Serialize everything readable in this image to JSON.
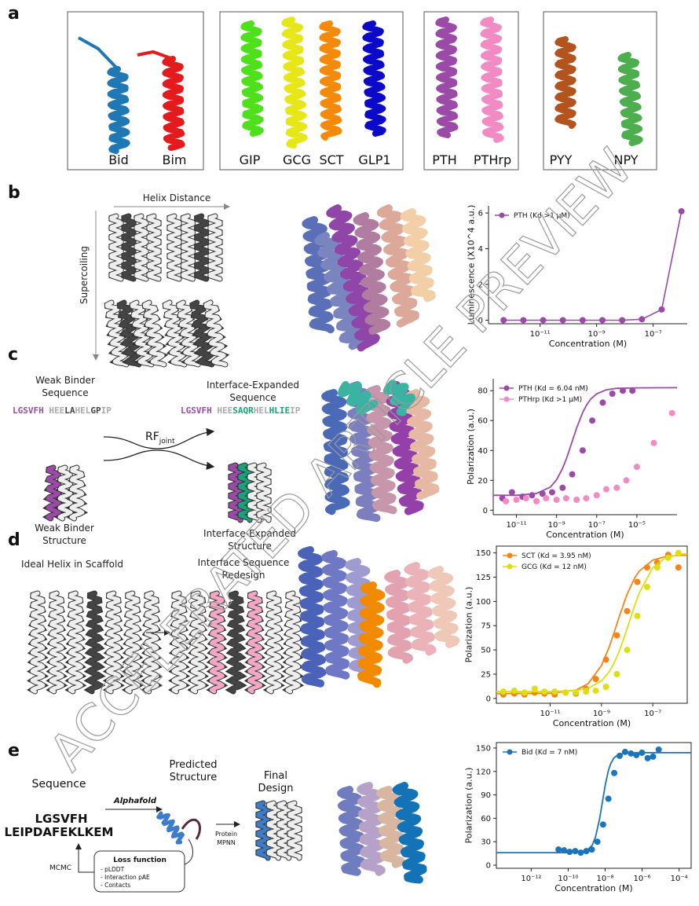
{
  "watermark": "ACCELERATED ARTICLE PREVIEW",
  "panels": {
    "a": {
      "label": "a",
      "peptides": [
        "Bid",
        "Bim",
        "GIP",
        "GCG",
        "SCT",
        "GLP1",
        "PTH",
        "PTHrp",
        "PYY",
        "NPY"
      ]
    },
    "b": {
      "label": "b",
      "helix_distance": "Helix Distance",
      "supercoiling": "Supercoiling"
    },
    "c": {
      "label": "c",
      "weak_sequence_title": [
        "Weak Binder",
        "Sequence"
      ],
      "weak_sequence": [
        {
          "text": "LGSVFH",
          "color": "#9b4aa8"
        },
        {
          "text": " HEE",
          "color": "#aaaaaa"
        },
        {
          "text": "LA",
          "color": "#444444"
        },
        {
          "text": "HEL",
          "color": "#aaaaaa"
        },
        {
          "text": "GP",
          "color": "#444444"
        },
        {
          "text": "IP",
          "color": "#aaaaaa"
        }
      ],
      "rf_joint": {
        "main": "RF",
        "sub": "joint"
      },
      "weak_structure_title": [
        "Weak Binder",
        "Structure"
      ],
      "expanded_sequence_title": [
        "Interface-Expanded",
        "Sequence"
      ],
      "expanded_sequence": [
        {
          "text": "LGSVFH",
          "color": "#9b4aa8"
        },
        {
          "text": " HEE",
          "color": "#aaaaaa"
        },
        {
          "text": "SAQR",
          "color": "#17a37a"
        },
        {
          "text": "HEL",
          "color": "#aaaaaa"
        },
        {
          "text": "HLIE",
          "color": "#17a37a"
        },
        {
          "text": "IP",
          "color": "#aaaaaa"
        }
      ],
      "expanded_structure_title": [
        "Interface-Expanded",
        "Structure"
      ]
    },
    "d": {
      "label": "d",
      "scaffold_title": "Ideal Helix in Scaffold",
      "redesign_title": [
        "Interface Sequence",
        "Redesign"
      ]
    },
    "e": {
      "label": "e",
      "sequence_title": "Sequence",
      "sequence": [
        {
          "text": "LGSVFH",
          "color": "#3d7cc9"
        },
        {
          "text": "LEIPDAFEKLKEM",
          "color": "#555555"
        }
      ],
      "alphafold": "Alphafold",
      "predicted_title": [
        "Predicted",
        "Structure"
      ],
      "final_title": [
        "Final",
        "Design"
      ],
      "mpnn": [
        "Protein",
        "MPNN"
      ],
      "mcmc": "MCMC",
      "loss_title": "Loss function",
      "loss_items": [
        "- pLDDT",
        "- Interaction pAE",
        "- Contacts"
      ]
    }
  },
  "chart_data": [
    {
      "type": "line",
      "xlabel": "Concentration (M)",
      "ylabel": "Luminescence (X10^4 a.u.)",
      "xscale": "log",
      "box": false,
      "legend": "upper left",
      "xlim": [
        1.5e-13,
        1.6e-06
      ],
      "xticks": [
        {
          "value": 1e-11,
          "label": "10⁻¹¹"
        },
        {
          "value": 1e-09,
          "label": "10⁻⁹"
        },
        {
          "value": 1e-07,
          "label": "10⁻⁷"
        }
      ],
      "ylim": [
        -0.2,
        6.4
      ],
      "yticks": [
        0,
        2,
        4,
        6
      ],
      "series": [
        {
          "name": "PTH (Kd >1 μM)",
          "color": "#9b4aa8",
          "x": [
            5.12e-13,
            2.56e-12,
            1.28e-11,
            6.4e-11,
            3.2e-10,
            1.6e-09,
            8e-09,
            4e-08,
            2e-07,
            1e-06
          ],
          "values": [
            0,
            0,
            0,
            0,
            0,
            0,
            0,
            0.05,
            0.6,
            6.1
          ]
        }
      ]
    },
    {
      "type": "scatter",
      "xlabel": "Concentration (M)",
      "ylabel": "Polarization (a.u.)",
      "xscale": "log",
      "box": false,
      "legend": "upper left",
      "xlim": [
        7e-13,
        0.001
      ],
      "xticks": [
        {
          "value": 1e-11,
          "label": "10⁻¹¹"
        },
        {
          "value": 1e-09,
          "label": "10⁻⁹"
        },
        {
          "value": 1e-07,
          "label": "10⁻⁷"
        },
        {
          "value": 1e-05,
          "label": "10⁻⁵"
        }
      ],
      "ylim": [
        -3,
        88
      ],
      "yticks": [
        0,
        20,
        40,
        60,
        80
      ],
      "series": [
        {
          "name": "PTH (Kd = 6.04 nM)",
          "color": "#9b4aa8",
          "x": [
            2e-12,
            6e-12,
            2e-11,
            6e-11,
            2e-10,
            6e-10,
            2e-09,
            6e-09,
            2e-08,
            6e-08,
            2e-07,
            6e-07,
            2e-06,
            6e-06
          ],
          "values": [
            8,
            12,
            9,
            10,
            11,
            12,
            15,
            24,
            40,
            60,
            72,
            78,
            80,
            80
          ],
          "fit_x": [
            7e-13,
            1e-11,
            1e-10,
            5e-10,
            1e-09,
            2e-09,
            3e-09,
            4e-09,
            6e-09,
            1e-08,
            2e-08,
            3e-08,
            5e-08,
            1e-07,
            3e-07,
            1e-06,
            1e-05,
            0.001
          ],
          "fit_values": [
            10,
            10,
            11.2,
            15.5,
            20.3,
            28,
            34,
            38.8,
            46,
            55,
            65.4,
            70,
            74.3,
            77.9,
            80.6,
            81.6,
            81.9,
            82
          ]
        },
        {
          "name": "PTHrp (Kd >1 μM)",
          "color": "#f28ac4",
          "x": [
            3e-12,
            1e-11,
            3e-11,
            1e-10,
            3e-10,
            1e-09,
            3e-09,
            1e-08,
            3e-08,
            1e-07,
            3e-07,
            1e-06,
            3e-06,
            1e-05,
            7e-05,
            0.00057
          ],
          "values": [
            6,
            7,
            8,
            6,
            8,
            7,
            8,
            7,
            8,
            10,
            14,
            15,
            20,
            29,
            45,
            65
          ]
        }
      ]
    },
    {
      "type": "scatter",
      "xlabel": "Concentration (M)",
      "ylabel": "Polarization (a.u.)",
      "xscale": "log",
      "box": true,
      "legend": "upper left",
      "xlim": [
        8e-14,
        2.2e-06
      ],
      "xticks": [
        {
          "value": 1e-11,
          "label": "10⁻¹¹"
        },
        {
          "value": 1e-09,
          "label": "10⁻⁹"
        },
        {
          "value": 1e-07,
          "label": "10⁻⁷"
        }
      ],
      "ylim": [
        -5,
        157
      ],
      "yticks": [
        0,
        25,
        50,
        75,
        100,
        125,
        150
      ],
      "series": [
        {
          "name": "SCT (Kd = 3.95 nM)",
          "color": "#f58518",
          "x": [
            1.5e-13,
            4e-13,
            1e-12,
            2.5e-12,
            6e-12,
            1.5e-11,
            4e-11,
            1e-10,
            2.5e-10,
            6e-10,
            1.5e-09,
            4e-09,
            1e-08,
            2.5e-08,
            6e-08,
            1.5e-07,
            4e-07,
            1e-06
          ],
          "values": [
            4,
            5,
            4,
            6,
            5,
            4,
            6,
            5,
            10,
            20,
            40,
            65,
            90,
            120,
            135,
            140,
            148,
            135
          ],
          "fit_x": [
            8e-14,
            1e-11,
            1e-10,
            3e-10,
            1e-09,
            2e-09,
            3e-09,
            5e-09,
            1e-08,
            2e-08,
            3e-08,
            1e-07,
            3e-07,
            1e-06,
            2.2e-06
          ],
          "fit_values": [
            5,
            5.4,
            8.5,
            15.1,
            33.9,
            53.1,
            66.7,
            84.9,
            107.5,
            124.4,
            131.4,
            142.6,
            146.1,
            147.4,
            147.7
          ]
        },
        {
          "name": "GCG (Kd = 12 nM)",
          "color": "#dede10",
          "x": [
            1.5e-13,
            4e-13,
            1e-12,
            2.5e-12,
            6e-12,
            1.5e-11,
            4e-11,
            1e-10,
            2.5e-10,
            6e-10,
            1.5e-09,
            4e-09,
            1e-08,
            2.5e-08,
            6e-08,
            1.5e-07,
            4e-07,
            1e-06
          ],
          "values": [
            7,
            8,
            6,
            10,
            7,
            7,
            6,
            6,
            7,
            8,
            12,
            25,
            50,
            85,
            115,
            135,
            145,
            150
          ],
          "fit_x": [
            8e-14,
            1e-11,
            1e-10,
            3e-10,
            1e-09,
            2e-09,
            3e-09,
            5e-09,
            1e-08,
            2e-08,
            3e-08,
            1e-07,
            3e-07,
            1e-06,
            2.2e-06
          ],
          "fit_values": [
            7,
            7.1,
            8.2,
            10.5,
            18,
            27.4,
            35.6,
            49.1,
            72,
            96.4,
            109.1,
            134.7,
            144.5,
            148.3,
            149.2
          ]
        }
      ]
    },
    {
      "type": "scatter",
      "xlabel": "Concentration (M)",
      "ylabel": "Polarization (a.u.)",
      "xscale": "log",
      "box": true,
      "legend": "upper left",
      "xlim": [
        1.3e-14,
        0.00045
      ],
      "xticks": [
        {
          "value": 1e-12,
          "label": "10⁻¹²"
        },
        {
          "value": 1e-10,
          "label": "10⁻¹⁰"
        },
        {
          "value": 1e-08,
          "label": "10⁻⁸"
        },
        {
          "value": 1e-06,
          "label": "10⁻⁶"
        },
        {
          "value": 0.0001,
          "label": "10⁻⁴"
        }
      ],
      "ylim": [
        -4,
        157
      ],
      "yticks": [
        0,
        30,
        60,
        90,
        120,
        150
      ],
      "series": [
        {
          "name": "Bid (Kd = 7 nM)",
          "color": "#1a75bc",
          "x": [
            3e-11,
            6e-11,
            1.2e-10,
            2.4e-10,
            4.8e-10,
            9.6e-10,
            1.9e-09,
            3.8e-09,
            7.7e-09,
            1.5e-08,
            3.1e-08,
            6.1e-08,
            1.2e-07,
            2.5e-07,
            4.9e-07,
            9.8e-07,
            2e-06,
            3.9e-06,
            7.9e-06
          ],
          "values": [
            20,
            19,
            17,
            18,
            16,
            18,
            20,
            30,
            52,
            85,
            118,
            140,
            145,
            143,
            141,
            144,
            137,
            139,
            148
          ],
          "fit_x": [
            1.3e-14,
            1e-10,
            1e-09,
            2e-09,
            3e-09,
            5e-09,
            7e-09,
            1e-08,
            1.5e-08,
            2e-08,
            3e-08,
            5e-08,
            1e-07,
            1e-06,
            0.00045
          ],
          "fit_values": [
            16,
            16,
            18.5,
            25.7,
            35.9,
            59.2,
            80,
            101.9,
            121.1,
            130,
            137.4,
            141.5,
            143.4,
            144,
            144
          ]
        }
      ]
    }
  ]
}
